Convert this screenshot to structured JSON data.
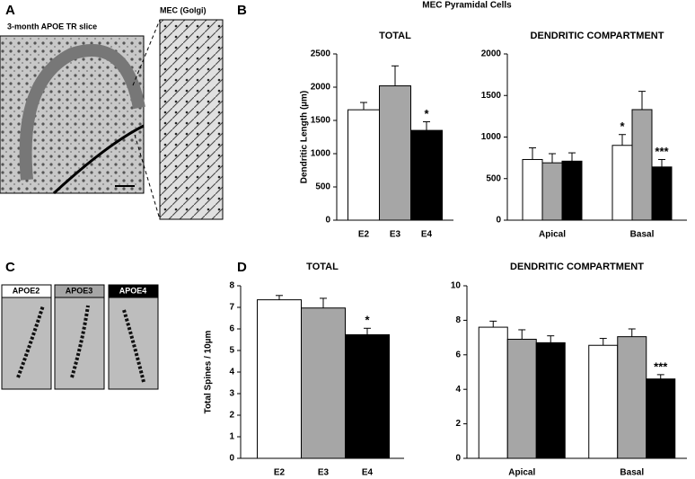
{
  "figure": {
    "panel_a": "A",
    "slice_label": "3-month APOE TR slice",
    "golgi_label": "MEC  (Golgi)",
    "panel_b": "B",
    "panel_b_title": "MEC Pyramidal Cells",
    "panel_c": "C",
    "spine_labels": [
      "APOE2",
      "APOE3",
      "APOE4"
    ],
    "panel_d": "D"
  },
  "chart_data": [
    {
      "type": "bar",
      "title": "TOTAL",
      "y_label": "Dendritic Length  (µm)",
      "categories": [
        "E2",
        "E3",
        "E4"
      ],
      "values": [
        1660,
        2020,
        1350
      ],
      "errors": [
        110,
        300,
        130
      ],
      "colors": [
        "#ffffff",
        "#a6a6a6",
        "#000000"
      ],
      "ylim": [
        0,
        2500
      ],
      "yticks": [
        0,
        500,
        1000,
        1500,
        2000,
        2500
      ],
      "annotations": [
        "*"
      ]
    },
    {
      "type": "grouped-bar",
      "title": "DENDRITIC COMPARTMENT",
      "categories": [
        "Apical",
        "Basal"
      ],
      "series": [
        {
          "color": "#ffffff",
          "values": [
            730,
            900
          ],
          "errors": [
            140,
            130
          ]
        },
        {
          "color": "#a6a6a6",
          "values": [
            690,
            1330
          ],
          "errors": [
            110,
            220
          ]
        },
        {
          "color": "#000000",
          "values": [
            710,
            640
          ],
          "errors": [
            100,
            90
          ]
        }
      ],
      "ylim": [
        0,
        2000
      ],
      "yticks": [
        0,
        500,
        1000,
        1500,
        2000
      ],
      "annotations": [
        "*",
        "***"
      ]
    },
    {
      "type": "bar",
      "title": "TOTAL",
      "y_label": "Total Spines / 10µm",
      "categories": [
        "E2",
        "E3",
        "E4"
      ],
      "values": [
        7.35,
        6.97,
        5.73
      ],
      "errors": [
        0.2,
        0.45,
        0.3
      ],
      "colors": [
        "#ffffff",
        "#a6a6a6",
        "#000000"
      ],
      "ylim": [
        0,
        8
      ],
      "yticks": [
        0,
        1,
        2,
        3,
        4,
        5,
        6,
        7,
        8
      ],
      "annotations": [
        "*"
      ]
    },
    {
      "type": "grouped-bar",
      "title": "DENDRITIC COMPARTMENT",
      "categories": [
        "Apical",
        "Basal"
      ],
      "series": [
        {
          "color": "#ffffff",
          "values": [
            7.6,
            6.55
          ],
          "errors": [
            0.35,
            0.4
          ]
        },
        {
          "color": "#a6a6a6",
          "values": [
            6.9,
            7.05
          ],
          "errors": [
            0.55,
            0.45
          ]
        },
        {
          "color": "#000000",
          "values": [
            6.7,
            4.6
          ],
          "errors": [
            0.4,
            0.25
          ]
        }
      ],
      "ylim": [
        0,
        10
      ],
      "yticks": [
        0,
        2,
        4,
        6,
        8,
        10
      ],
      "annotations": [
        "***"
      ]
    }
  ]
}
